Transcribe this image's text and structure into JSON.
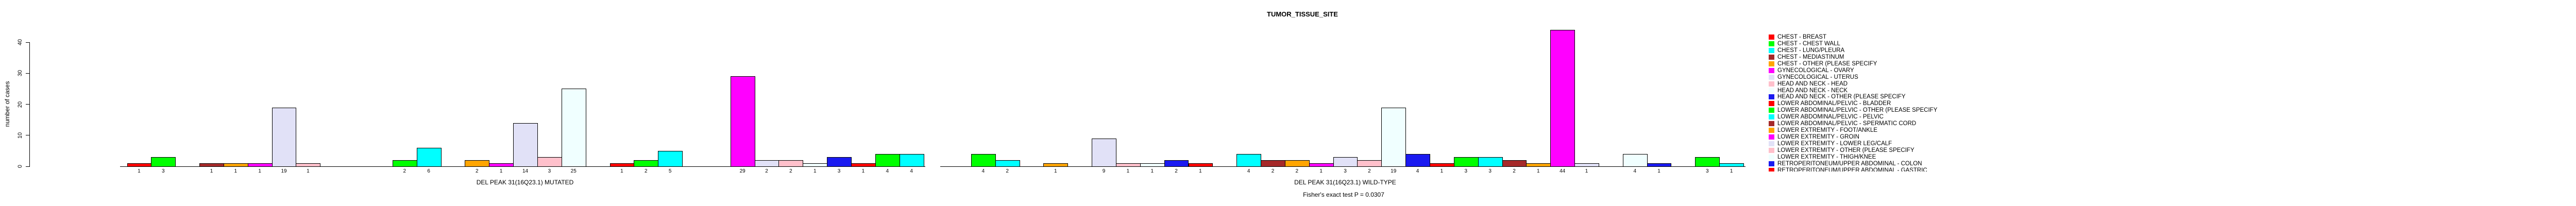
{
  "chart_data": {
    "type": "bar",
    "title": "TUMOR_TISSUE_SITE",
    "ylabel": "number of cases",
    "ylim": [
      0,
      40
    ],
    "yticks": [
      0,
      10,
      20,
      30,
      40
    ],
    "grid": false,
    "legend_position": "right",
    "annotation": "Fisher's exact test P = 0.0307",
    "palette": [
      "#FF0000",
      "#00FF00",
      "#00FFFF",
      "#A52A2A",
      "#FFA500",
      "#FF00FF",
      "#E1E1F7",
      "#FFC0CB",
      "#F0FFFF",
      "#1A1AF0"
    ],
    "panels": [
      {
        "label": "DEL PEAK 31(16Q23.1) MUTATED",
        "values": [
          1,
          3,
          0,
          1,
          1,
          1,
          19,
          1,
          0,
          0,
          0,
          2,
          6,
          0,
          2,
          1,
          14,
          3,
          25,
          0,
          1,
          2,
          5,
          0,
          0,
          29,
          2,
          2,
          1,
          3,
          1,
          4,
          4
        ]
      },
      {
        "label": "DEL PEAK 31(16Q23.1) WILD-TYPE",
        "values": [
          0,
          4,
          2,
          0,
          1,
          0,
          9,
          1,
          1,
          2,
          1,
          0,
          4,
          2,
          2,
          1,
          3,
          2,
          19,
          4,
          1,
          3,
          3,
          2,
          1,
          44,
          1,
          0,
          4,
          1,
          0,
          3,
          1
        ]
      }
    ],
    "legend_entries": [
      {
        "label": "CHEST - BREAST",
        "color": "#FF0000",
        "clipped": false
      },
      {
        "label": "CHEST - CHEST WALL",
        "color": "#00FF00",
        "clipped": false
      },
      {
        "label": "CHEST - LUNG/PLEURA",
        "color": "#00FFFF",
        "clipped": false
      },
      {
        "label": "CHEST - MEDIASTINUM",
        "color": "#A52A2A",
        "clipped": false
      },
      {
        "label": "CHEST - OTHER (PLEASE SPECIFY",
        "color": "#FFA500",
        "clipped": false
      },
      {
        "label": "GYNECOLOGICAL - OVARY",
        "color": "#FF00FF",
        "clipped": false
      },
      {
        "label": "GYNECOLOGICAL - UTERUS",
        "color": "#E1E1F7",
        "clipped": false
      },
      {
        "label": "HEAD AND NECK - HEAD",
        "color": "#FFC0CB",
        "clipped": false
      },
      {
        "label": "HEAD AND NECK - NECK",
        "color": "#F0FFFF",
        "clipped": false
      },
      {
        "label": "HEAD AND NECK - OTHER (PLEASE SPECIFY",
        "color": "#1A1AF0",
        "clipped": false
      },
      {
        "label": "LOWER ABDOMINAL/PELVIC - BLADDER",
        "color": "#FF0000",
        "clipped": false
      },
      {
        "label": "LOWER ABDOMINAL/PELVIC - OTHER (PLEASE SPECIFY",
        "color": "#00FF00",
        "clipped": false
      },
      {
        "label": "LOWER ABDOMINAL/PELVIC - PELVIC",
        "color": "#00FFFF",
        "clipped": false
      },
      {
        "label": "LOWER ABDOMINAL/PELVIC - SPERMATIC CORD",
        "color": "#A52A2A",
        "clipped": false
      },
      {
        "label": "LOWER EXTREMITY - FOOT/ANKLE",
        "color": "#FFA500",
        "clipped": false
      },
      {
        "label": "LOWER EXTREMITY - GROIN",
        "color": "#FF00FF",
        "clipped": false
      },
      {
        "label": "LOWER EXTREMITY - LOWER LEG/CALF",
        "color": "#E1E1F7",
        "clipped": false
      },
      {
        "label": "LOWER EXTREMITY - OTHER (PLEASE SPECIFY",
        "color": "#FFC0CB",
        "clipped": false
      },
      {
        "label": "LOWER EXTREMITY - THIGH/KNEE",
        "color": "#F0FFFF",
        "clipped": false
      },
      {
        "label": "RETROPERITONEUM/UPPER ABDOMINAL - COLON",
        "color": "#1A1AF0",
        "clipped": false
      },
      {
        "label": "RETROPERITONEUM/UPPER ABDOMINAL - GASTRIC",
        "color": "#FF0000",
        "clipped": true
      }
    ]
  }
}
